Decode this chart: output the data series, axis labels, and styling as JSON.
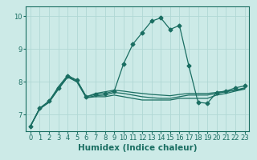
{
  "xlabel": "Humidex (Indice chaleur)",
  "background_color": "#cceae7",
  "grid_color": "#b0d8d4",
  "line_color": "#1a6e62",
  "x_ticks": [
    0,
    1,
    2,
    3,
    4,
    5,
    6,
    7,
    8,
    9,
    10,
    11,
    12,
    13,
    14,
    15,
    16,
    17,
    18,
    19,
    20,
    21,
    22,
    23
  ],
  "ylim": [
    6.5,
    10.3
  ],
  "xlim": [
    -0.5,
    23.5
  ],
  "series": [
    {
      "y": [
        6.65,
        7.2,
        7.4,
        7.85,
        8.2,
        8.05,
        7.55,
        7.65,
        7.7,
        7.75,
        7.72,
        7.68,
        7.65,
        7.62,
        7.6,
        7.58,
        7.62,
        7.65,
        7.65,
        7.65,
        7.68,
        7.72,
        7.75,
        7.82
      ],
      "marker": false,
      "lw": 0.9
    },
    {
      "y": [
        6.65,
        7.2,
        7.42,
        7.82,
        8.18,
        8.05,
        7.55,
        7.62,
        7.65,
        7.72,
        8.55,
        9.15,
        9.5,
        9.85,
        9.95,
        9.6,
        9.72,
        8.5,
        7.38,
        7.35,
        7.68,
        7.72,
        7.82,
        7.88
      ],
      "marker": true,
      "lw": 0.9
    },
    {
      "y": [
        6.65,
        7.18,
        7.38,
        7.78,
        8.15,
        8.02,
        7.52,
        7.58,
        7.6,
        7.68,
        7.65,
        7.6,
        7.55,
        7.52,
        7.5,
        7.5,
        7.55,
        7.6,
        7.6,
        7.6,
        7.65,
        7.7,
        7.75,
        7.8
      ],
      "marker": false,
      "lw": 0.9
    },
    {
      "y": [
        6.65,
        7.18,
        7.38,
        7.78,
        8.15,
        8.0,
        7.52,
        7.55,
        7.55,
        7.6,
        7.55,
        7.5,
        7.45,
        7.45,
        7.45,
        7.45,
        7.5,
        7.5,
        7.5,
        7.5,
        7.6,
        7.65,
        7.72,
        7.78
      ],
      "marker": false,
      "lw": 0.9
    }
  ],
  "marker_style": "D",
  "marker_size": 2.5,
  "yticks": [
    7,
    8,
    9,
    10
  ],
  "tick_fontsize": 6,
  "xlabel_fontsize": 7.5
}
